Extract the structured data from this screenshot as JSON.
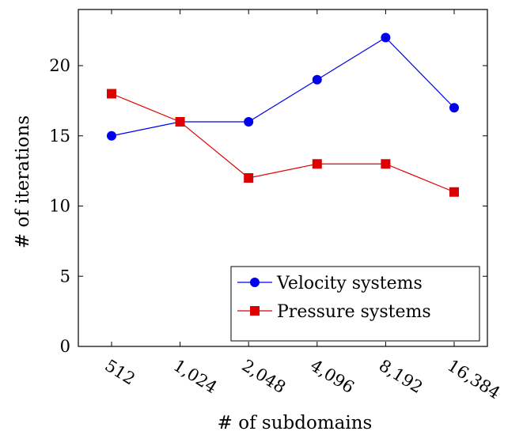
{
  "chart_data": {
    "type": "line",
    "xlabel": "# of subdomains",
    "ylabel": "# of iterations",
    "categories": [
      "512",
      "1,024",
      "2,048",
      "4,096",
      "8,192",
      "16,384"
    ],
    "ylim": [
      0,
      24
    ],
    "yticks": [
      "0",
      "5",
      "10",
      "15",
      "20"
    ],
    "series": [
      {
        "name": "Velocity systems",
        "values": [
          15,
          16,
          16,
          19,
          22,
          17
        ],
        "color": "#0000ee",
        "marker": "circle"
      },
      {
        "name": "Pressure systems",
        "values": [
          18,
          16,
          12,
          13,
          13,
          11
        ],
        "color": "#dd0000",
        "marker": "square"
      }
    ],
    "legend_position": "bottom-right",
    "grid": false
  }
}
